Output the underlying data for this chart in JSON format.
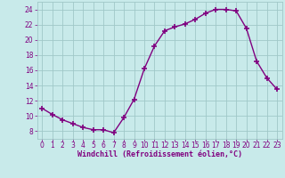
{
  "x": [
    0,
    1,
    2,
    3,
    4,
    5,
    6,
    7,
    8,
    9,
    10,
    11,
    12,
    13,
    14,
    15,
    16,
    17,
    18,
    19,
    20,
    21,
    22,
    23
  ],
  "y": [
    11,
    10.2,
    9.5,
    9.0,
    8.5,
    8.2,
    8.2,
    7.8,
    9.8,
    12.2,
    16.2,
    19.2,
    21.2,
    21.7,
    22.1,
    22.7,
    23.5,
    24.0,
    24.0,
    23.8,
    21.5,
    17.2,
    15.0,
    13.5
  ],
  "line_color": "#800080",
  "marker": "+",
  "marker_size": 4,
  "marker_linewidth": 1.2,
  "line_width": 1.0,
  "background_color": "#c8eaea",
  "grid_color": "#a0c8c8",
  "xlabel": "Windchill (Refroidissement éolien,°C)",
  "xlabel_color": "#800080",
  "tick_color": "#800080",
  "tick_label_color": "#800080",
  "xlim": [
    -0.5,
    23.5
  ],
  "ylim": [
    7.0,
    25.0
  ],
  "yticks": [
    8,
    10,
    12,
    14,
    16,
    18,
    20,
    22,
    24
  ],
  "xticks": [
    0,
    1,
    2,
    3,
    4,
    5,
    6,
    7,
    8,
    9,
    10,
    11,
    12,
    13,
    14,
    15,
    16,
    17,
    18,
    19,
    20,
    21,
    22,
    23
  ],
  "tick_fontsize": 5.5,
  "xlabel_fontsize": 6.0
}
